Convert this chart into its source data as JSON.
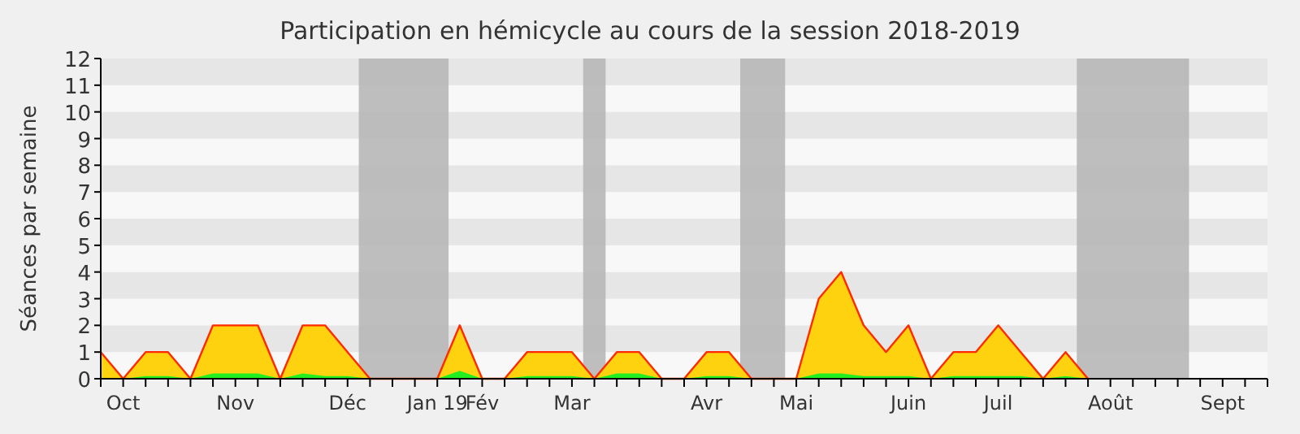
{
  "chart_data": {
    "type": "area",
    "title": "Participation en hémicycle au cours de la session 2018-2019",
    "ylabel": "Séances par semaine",
    "categories": [
      null,
      "Oct",
      null,
      null,
      null,
      null,
      "Nov",
      null,
      null,
      null,
      null,
      "Déc",
      null,
      null,
      null,
      "Jan 19",
      null,
      "Fév",
      null,
      null,
      null,
      "Mar",
      null,
      null,
      null,
      null,
      null,
      "Avr",
      null,
      null,
      null,
      "Mai",
      null,
      null,
      null,
      null,
      "Juin",
      null,
      null,
      null,
      "Juil",
      null,
      null,
      null,
      null,
      "Août",
      null,
      null,
      null,
      null,
      "Sept",
      null,
      null
    ],
    "ylim": [
      0,
      12
    ],
    "yticks": [
      0,
      1,
      2,
      3,
      4,
      5,
      6,
      7,
      8,
      9,
      10,
      11,
      12
    ],
    "series": [
      {
        "color": "#ffd20f",
        "values": [
          1,
          0,
          1,
          1,
          0,
          2,
          2,
          2,
          0,
          2,
          2,
          1,
          0,
          0,
          0,
          0,
          2,
          0,
          0,
          1,
          1,
          1,
          0,
          1,
          1,
          0,
          0,
          1,
          1,
          0,
          0,
          0,
          3,
          4,
          2,
          1,
          2,
          0,
          1,
          1,
          2,
          1,
          0,
          1,
          0,
          null,
          null,
          null,
          null,
          null,
          null,
          null,
          null
        ]
      },
      {
        "color": "#22ee22",
        "values": [
          0,
          0,
          0.1,
          0.1,
          0,
          0.2,
          0.2,
          0.2,
          0,
          0.2,
          0.1,
          0.1,
          0,
          0,
          0,
          0,
          0.3,
          0,
          0,
          0.1,
          0.1,
          0.1,
          0,
          0.2,
          0.2,
          0,
          0,
          0.1,
          0.1,
          0,
          0,
          0,
          0.2,
          0.2,
          0.1,
          0.1,
          0.1,
          0,
          0.1,
          0.1,
          0.1,
          0.1,
          0,
          0.1,
          0,
          null,
          null,
          null,
          null,
          null,
          null,
          null,
          null
        ]
      }
    ]
  }
}
